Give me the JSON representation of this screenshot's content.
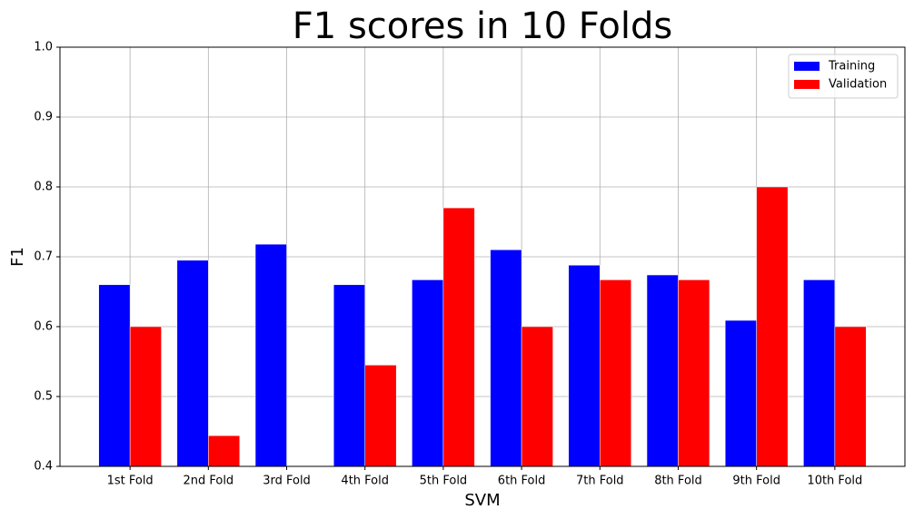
{
  "chart_data": {
    "type": "bar",
    "title": "F1 scores in 10 Folds",
    "x_label": "SVM",
    "y_label": "F1",
    "categories": [
      "1st Fold",
      "2nd Fold",
      "3rd Fold",
      "4th Fold",
      "5th Fold",
      "6th Fold",
      "7th Fold",
      "8th Fold",
      "9th Fold",
      "10th Fold"
    ],
    "series": [
      {
        "name": "Training",
        "color": "#0000ff",
        "values": [
          0.66,
          0.695,
          0.718,
          0.66,
          0.667,
          0.71,
          0.688,
          0.674,
          0.609,
          0.667
        ]
      },
      {
        "name": "Validation",
        "color": "#ff0000",
        "values": [
          0.6,
          0.444,
          null,
          0.545,
          0.77,
          0.6,
          0.667,
          0.667,
          0.8,
          0.6
        ]
      }
    ],
    "ylim": [
      0.4,
      1.0
    ],
    "yticks": [
      0.4,
      0.5,
      0.6,
      0.7,
      0.8,
      0.9,
      {
        "value": 1.0,
        "label": "1.0"
      }
    ],
    "grid": true,
    "legend": "upper right"
  }
}
